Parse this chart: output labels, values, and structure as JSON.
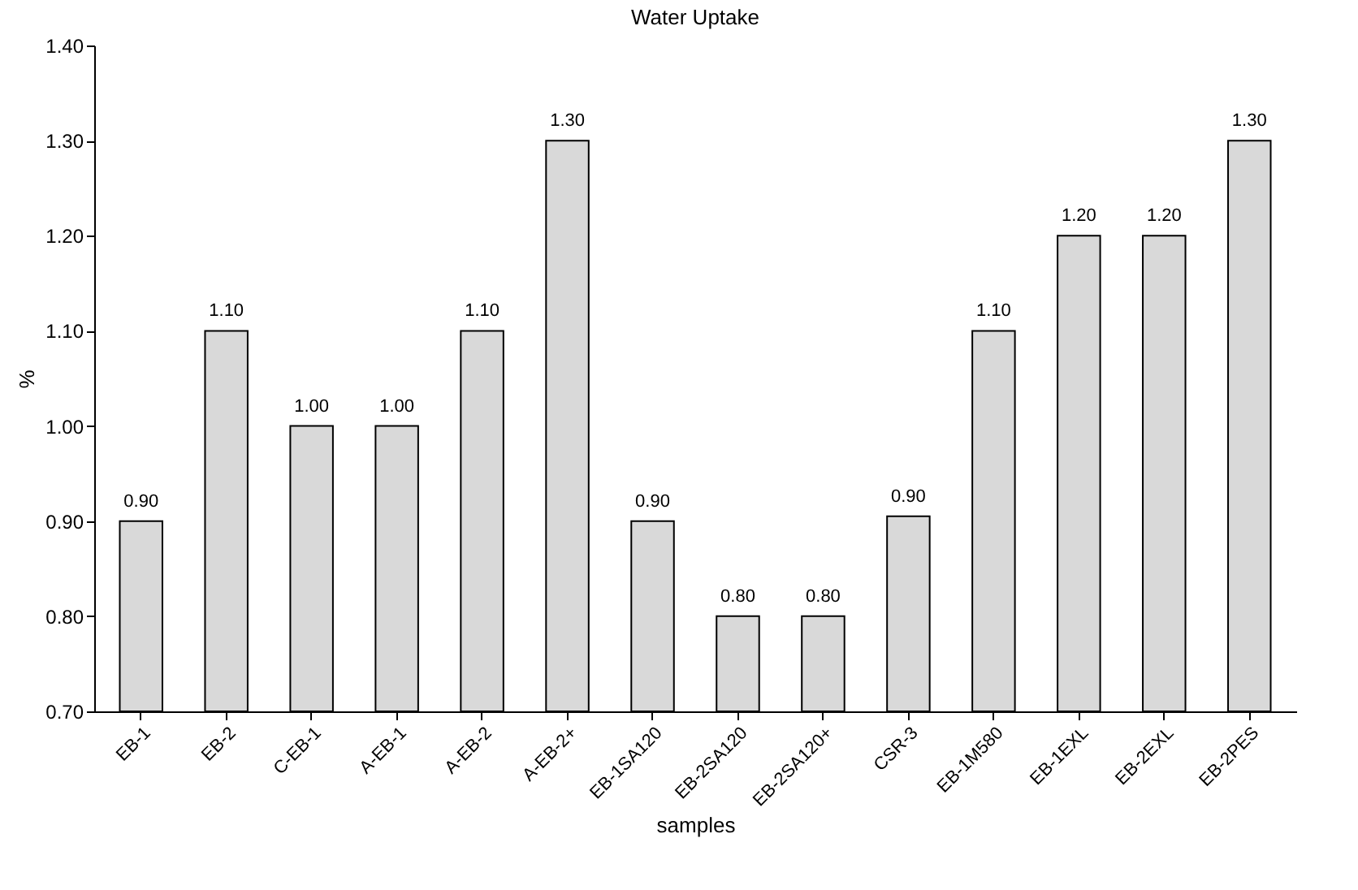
{
  "chart_data": {
    "type": "bar",
    "title": "Water Uptake",
    "xlabel": "samples",
    "ylabel": "%",
    "categories": [
      "EB-1",
      "EB-2",
      "C-EB-1",
      "A-EB-1",
      "A-EB-2",
      "A-EB-2+",
      "EB-1SA120",
      "EB-2SA120",
      "EB-2SA120+",
      "CSR-3",
      "EB-1M580",
      "EB-1EXL",
      "EB-2EXL",
      "EB-2PES"
    ],
    "values": [
      0.9,
      1.1,
      1.0,
      1.0,
      1.1,
      1.3,
      0.9,
      0.8,
      0.8,
      0.905,
      1.1,
      1.2,
      1.2,
      1.3
    ],
    "value_labels": [
      "0.90",
      "1.10",
      "1.00",
      "1.00",
      "1.10",
      "1.30",
      "0.90",
      "0.80",
      "0.80",
      "0.90",
      "1.10",
      "1.20",
      "1.20",
      "1.30"
    ],
    "color": "#d9d9d9",
    "ylim": [
      0.7,
      1.4
    ],
    "yticks": [
      {
        "value": 0.7,
        "label": "0.70"
      },
      {
        "value": 0.8,
        "label": "0.80"
      },
      {
        "value": 0.9,
        "label": "0.90"
      },
      {
        "value": 1.0,
        "label": "1.00"
      },
      {
        "value": 1.1,
        "label": "1.10"
      },
      {
        "value": 1.2,
        "label": "1.20"
      },
      {
        "value": 1.3,
        "label": "1.30"
      },
      {
        "value": 1.4,
        "label": "1.40"
      }
    ],
    "grid": false
  }
}
